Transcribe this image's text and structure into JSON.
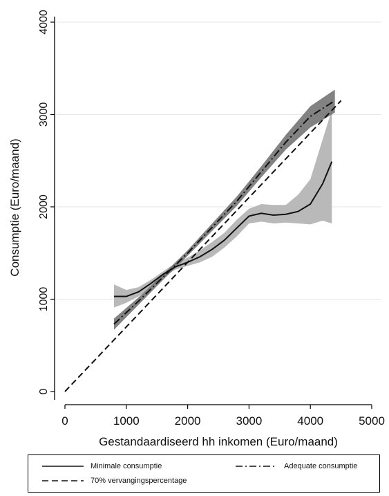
{
  "chart_data": {
    "type": "line",
    "title": "",
    "xlabel": "Gestandaardiseerd hh inkomen (Euro/maand)",
    "ylabel": "Consumptie (Euro/maand)",
    "xlim": [
      0,
      5000
    ],
    "ylim": [
      0,
      4000
    ],
    "xticks": [
      "0",
      "1000",
      "2000",
      "3000",
      "4000",
      "5000"
    ],
    "yticks": [
      "0",
      "1000",
      "2000",
      "3000",
      "4000"
    ],
    "grid": "horizontal",
    "legend_position": "bottom",
    "series": [
      {
        "name": "Minimale consumptie",
        "style": "solid",
        "color": "#111111",
        "x": [
          800,
          1000,
          1200,
          1400,
          1600,
          1800,
          2000,
          2200,
          2400,
          2600,
          2800,
          3000,
          3200,
          3400,
          3600,
          3800,
          4000,
          4200,
          4350
        ],
        "y": [
          1030,
          1030,
          1080,
          1170,
          1270,
          1350,
          1400,
          1460,
          1540,
          1640,
          1770,
          1900,
          1930,
          1910,
          1920,
          1950,
          2030,
          2250,
          2490
        ],
        "band_upper": [
          1160,
          1100,
          1130,
          1210,
          1300,
          1390,
          1450,
          1530,
          1620,
          1720,
          1860,
          1980,
          2030,
          2020,
          2020,
          2130,
          2300,
          2730,
          3050
        ],
        "band_lower": [
          910,
          960,
          1030,
          1130,
          1240,
          1320,
          1360,
          1400,
          1460,
          1560,
          1680,
          1820,
          1840,
          1820,
          1830,
          1820,
          1810,
          1850,
          1820
        ]
      },
      {
        "name": "Adequate consumptie",
        "style": "dashdot",
        "color": "#111111",
        "x": [
          800,
          1200,
          1600,
          2000,
          2400,
          2800,
          3200,
          3600,
          4000,
          4400
        ],
        "y": [
          730,
          980,
          1240,
          1500,
          1780,
          2060,
          2380,
          2700,
          2980,
          3150
        ],
        "band_upper": [
          790,
          1020,
          1270,
          1530,
          1820,
          2110,
          2440,
          2780,
          3090,
          3270
        ],
        "band_lower": [
          670,
          940,
          1210,
          1470,
          1740,
          2010,
          2320,
          2620,
          2860,
          3020
        ]
      },
      {
        "name": "70% vervangingspercentage",
        "style": "dashed",
        "color": "#111111",
        "x": [
          0,
          1000,
          2000,
          3000,
          4000,
          4500
        ],
        "y": [
          0,
          700,
          1400,
          2100,
          2800,
          3150
        ]
      }
    ]
  }
}
